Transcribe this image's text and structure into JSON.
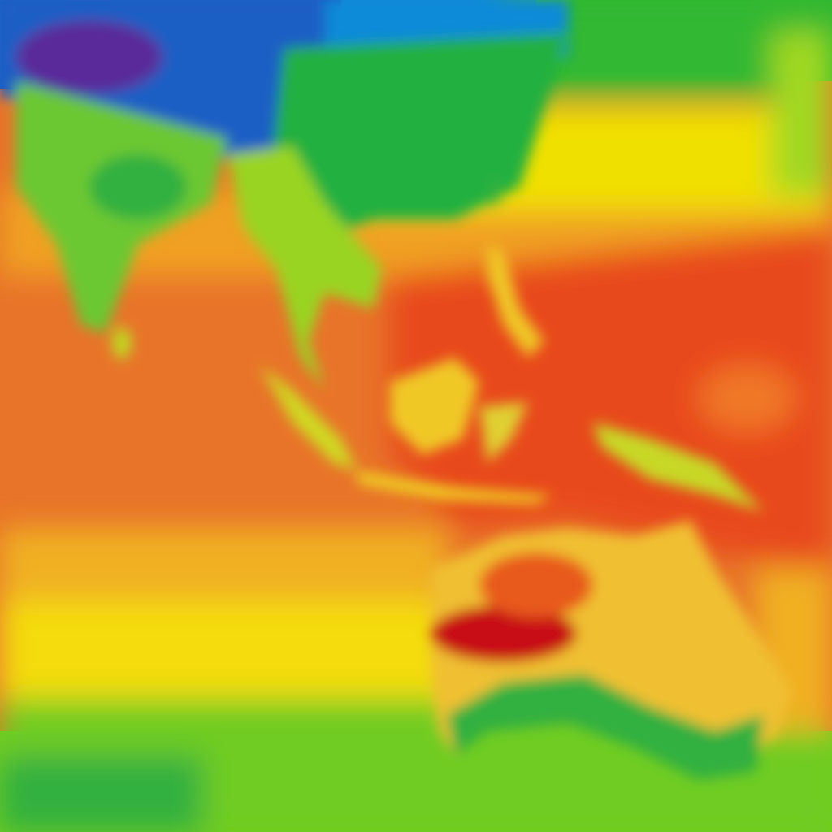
{
  "map": {
    "type": "temperature-heatmap",
    "palette": {
      "very_cold": "#5a2a9a",
      "cold": "#1a5fc4",
      "cool": "#0a8ad8",
      "mild": "#22b040",
      "warm_mild": "#8ad020",
      "warm": "#f0e000",
      "hot": "#f0a020",
      "very_hot": "#e8742a",
      "extreme": "#e84a1a",
      "max": "#c80a14"
    }
  }
}
